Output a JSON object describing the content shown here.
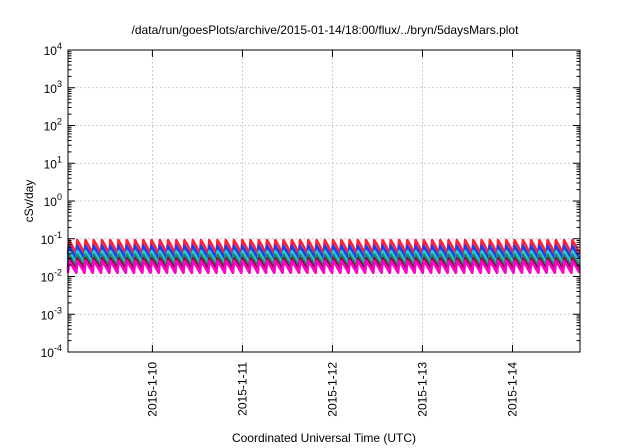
{
  "chart_data": {
    "type": "line",
    "title": "/data/run/goesPlots/archive/2015-01-14/18:00/flux/../bryn/5daysMars.plot",
    "xlabel": "Coordinated Universal Time (UTC)",
    "ylabel": "cSv/day",
    "y_scale": "log",
    "ylim": [
      0.0001,
      10000
    ],
    "y_ticks": [
      {
        "value": 0.0001,
        "base": "10",
        "exp": "-4"
      },
      {
        "value": 0.001,
        "base": "10",
        "exp": "-3"
      },
      {
        "value": 0.01,
        "base": "10",
        "exp": "-2"
      },
      {
        "value": 0.1,
        "base": "10",
        "exp": "-1"
      },
      {
        "value": 1,
        "base": "10",
        "exp": "0"
      },
      {
        "value": 10,
        "base": "10",
        "exp": "1"
      },
      {
        "value": 100,
        "base": "10",
        "exp": "2"
      },
      {
        "value": 1000,
        "base": "10",
        "exp": "3"
      },
      {
        "value": 10000,
        "base": "10",
        "exp": "4"
      }
    ],
    "xlim": [
      "2015-01-09T01:30",
      "2015-01-14T18:00"
    ],
    "x_ticks": [
      "2015-1-10",
      "2015-1-11",
      "2015-1-12",
      "2015-1-13",
      "2015-1-14"
    ],
    "grid": true,
    "cycle_hours": 2.2,
    "series": [
      {
        "color": "#ff1f3a",
        "peak": 0.092,
        "trough": 0.04
      },
      {
        "color": "#1f3fe6",
        "peak": 0.065,
        "trough": 0.029
      },
      {
        "color": "#20c8c8",
        "peak": 0.047,
        "trough": 0.022
      },
      {
        "color": "#2a7e6e",
        "peak": 0.037,
        "trough": 0.0175
      },
      {
        "color": "#800a2a",
        "peak": 0.03,
        "trough": 0.0145
      },
      {
        "color": "#ff00cc",
        "peak": 0.026,
        "trough": 0.0125
      }
    ]
  }
}
